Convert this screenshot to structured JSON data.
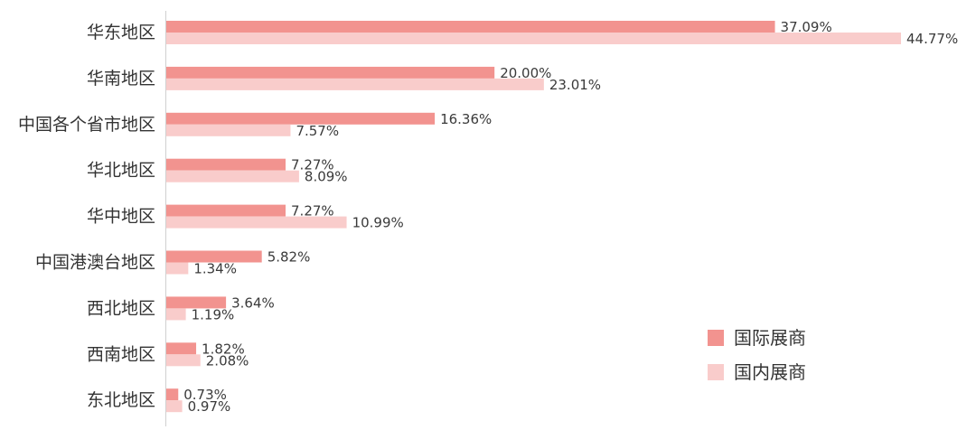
{
  "chart_data": {
    "type": "bar",
    "orientation": "horizontal",
    "categories": [
      "华东地区",
      "华南地区",
      "中国各个省市地区",
      "华北地区",
      "华中地区",
      "中国港澳台地区",
      "西北地区",
      "西南地区",
      "东北地区"
    ],
    "series": [
      {
        "name": "国际展商",
        "values": [
          37.09,
          20.0,
          16.36,
          7.27,
          7.27,
          5.82,
          3.64,
          1.82,
          0.73
        ],
        "labels": [
          "37.09%",
          "20.00%",
          "16.36%",
          "7.27%",
          "7.27%",
          "5.82%",
          "3.64%",
          "1.82%",
          "0.73%"
        ],
        "color": "#f2938f"
      },
      {
        "name": "国内展商",
        "values": [
          44.77,
          23.01,
          7.57,
          8.09,
          10.99,
          1.34,
          1.19,
          2.08,
          0.97
        ],
        "labels": [
          "44.77%",
          "23.01%",
          "7.57%",
          "8.09%",
          "10.99%",
          "1.34%",
          "1.19%",
          "2.08%",
          "0.97%"
        ],
        "color": "#f9cccb"
      }
    ],
    "xlim": [
      0,
      44.77
    ],
    "grid": false,
    "legend_position": "bottom-right"
  }
}
